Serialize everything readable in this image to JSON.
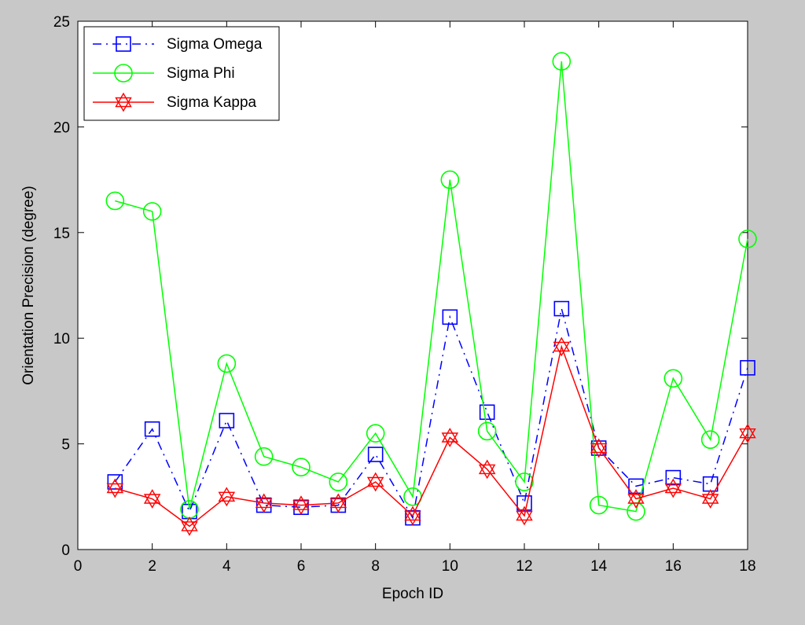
{
  "chart_data": {
    "type": "line",
    "xlabel": "Epoch ID",
    "ylabel": "Orientation Precision (degree)",
    "xlim": [
      0,
      18
    ],
    "ylim": [
      0,
      25
    ],
    "xticks": [
      0,
      2,
      4,
      6,
      8,
      10,
      12,
      14,
      16,
      18
    ],
    "yticks": [
      0,
      5,
      10,
      15,
      20,
      25
    ],
    "grid": false,
    "legend_position": "top-left",
    "x": [
      1,
      2,
      3,
      4,
      5,
      6,
      7,
      8,
      9,
      10,
      11,
      12,
      13,
      14,
      15,
      16,
      17,
      18
    ],
    "series": [
      {
        "name": "Sigma Omega",
        "color": "#0000ff",
        "marker": "square",
        "line_style": "dash-dot",
        "values": [
          3.2,
          5.7,
          1.8,
          6.1,
          2.1,
          2.0,
          2.1,
          4.5,
          1.5,
          11.0,
          6.5,
          2.2,
          11.4,
          4.8,
          3.0,
          3.4,
          3.1,
          8.6
        ]
      },
      {
        "name": "Sigma Phi",
        "color": "#00ff00",
        "marker": "circle",
        "line_style": "solid",
        "values": [
          16.5,
          16.0,
          1.9,
          8.8,
          4.4,
          3.9,
          3.2,
          5.5,
          2.5,
          17.5,
          5.6,
          3.2,
          23.1,
          2.1,
          1.8,
          8.1,
          5.2,
          14.7
        ]
      },
      {
        "name": "Sigma Kappa",
        "color": "#ff0000",
        "marker": "hexagram",
        "line_style": "solid",
        "values": [
          2.9,
          2.4,
          1.1,
          2.5,
          2.2,
          2.1,
          2.2,
          3.2,
          1.6,
          5.3,
          3.8,
          1.6,
          9.6,
          4.8,
          2.4,
          2.9,
          2.4,
          5.5
        ]
      }
    ]
  }
}
